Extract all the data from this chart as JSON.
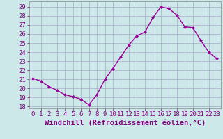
{
  "x": [
    0,
    1,
    2,
    3,
    4,
    5,
    6,
    7,
    8,
    9,
    10,
    11,
    12,
    13,
    14,
    15,
    16,
    17,
    18,
    19,
    20,
    21,
    22,
    23
  ],
  "y": [
    21.1,
    20.8,
    20.2,
    19.8,
    19.3,
    19.1,
    18.8,
    18.2,
    19.3,
    21.0,
    22.2,
    23.5,
    24.8,
    25.8,
    26.2,
    27.8,
    29.0,
    28.8,
    28.1,
    26.8,
    26.7,
    25.3,
    24.0,
    23.3
  ],
  "line_color": "#990099",
  "marker": "D",
  "marker_size": 2,
  "bg_color": "#cce8e8",
  "grid_color": "#aaaacc",
  "xlabel": "Windchill (Refroidissement éolien,°C)",
  "ylim": [
    17.8,
    29.6
  ],
  "xlim": [
    -0.5,
    23.5
  ],
  "yticks": [
    18,
    19,
    20,
    21,
    22,
    23,
    24,
    25,
    26,
    27,
    28,
    29
  ],
  "xtick_labels": [
    "0",
    "1",
    "2",
    "3",
    "4",
    "5",
    "6",
    "7",
    "8",
    "9",
    "10",
    "11",
    "12",
    "13",
    "14",
    "15",
    "16",
    "17",
    "18",
    "19",
    "20",
    "21",
    "22",
    "23"
  ],
  "tick_fontsize": 6.5,
  "xlabel_fontsize": 7.5,
  "ytick_fontsize": 6.5,
  "spine_color": "#888888",
  "line_width": 1.0
}
